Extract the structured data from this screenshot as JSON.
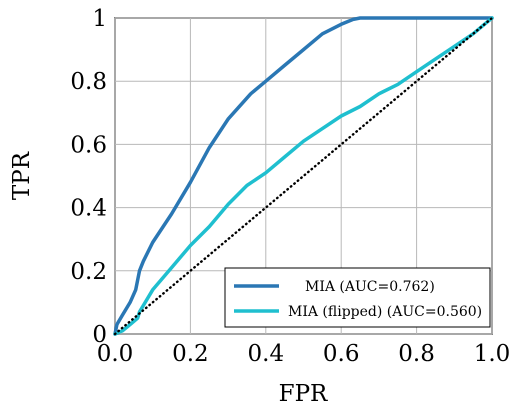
{
  "chart_data": {
    "type": "line",
    "xlabel": "FPR",
    "ylabel": "TPR",
    "xlim": [
      0,
      1
    ],
    "ylim": [
      0,
      1
    ],
    "grid": true,
    "legend_position": "bottom-right",
    "x_ticks": [
      "0.0",
      "0.2",
      "0.4",
      "0.6",
      "0.8",
      "1.0"
    ],
    "y_ticks": [
      "0",
      "0.2",
      "0.4",
      "0.6",
      "0.8",
      "1"
    ],
    "series": [
      {
        "name": "MIA (AUC=0.762)",
        "color": "#2a77b4",
        "x": [
          0.0,
          0.005,
          0.02,
          0.04,
          0.055,
          0.06,
          0.065,
          0.075,
          0.1,
          0.15,
          0.2,
          0.25,
          0.3,
          0.36,
          0.4,
          0.45,
          0.5,
          0.55,
          0.6,
          0.63,
          0.65,
          1.0
        ],
        "y": [
          0.0,
          0.03,
          0.06,
          0.1,
          0.14,
          0.17,
          0.2,
          0.23,
          0.29,
          0.38,
          0.48,
          0.59,
          0.68,
          0.76,
          0.8,
          0.85,
          0.9,
          0.95,
          0.98,
          0.995,
          1.0,
          1.0
        ]
      },
      {
        "name": "MIA (flipped) (AUC=0.560)",
        "color": "#1fbfcf",
        "x": [
          0.0,
          0.02,
          0.04,
          0.06,
          0.065,
          0.08,
          0.1,
          0.15,
          0.2,
          0.25,
          0.3,
          0.35,
          0.4,
          0.45,
          0.5,
          0.55,
          0.6,
          0.65,
          0.7,
          0.75,
          0.8,
          0.85,
          0.9,
          0.95,
          1.0
        ],
        "y": [
          0.0,
          0.01,
          0.03,
          0.05,
          0.07,
          0.1,
          0.14,
          0.21,
          0.28,
          0.34,
          0.41,
          0.47,
          0.51,
          0.56,
          0.61,
          0.65,
          0.69,
          0.72,
          0.76,
          0.79,
          0.83,
          0.87,
          0.91,
          0.95,
          1.0
        ]
      },
      {
        "name": "",
        "color": "#000000",
        "style": "dotted",
        "x": [
          0,
          1
        ],
        "y": [
          0,
          1
        ]
      }
    ]
  }
}
